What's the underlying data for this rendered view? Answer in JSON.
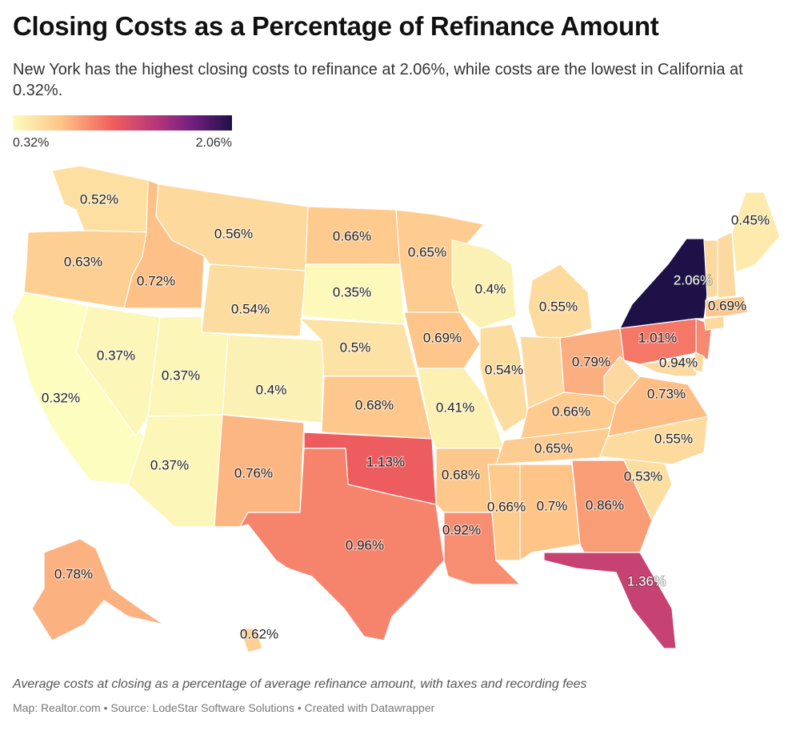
{
  "title": "Closing Costs as a Percentage of Refinance Amount",
  "subtitle": "New York has the highest closing costs to refinance at 2.06%, while costs are the lowest in California at 0.32%.",
  "legend": {
    "min_label": "0.32%",
    "max_label": "2.06%",
    "min": 0.32,
    "max": 2.06
  },
  "note": "Average costs at closing as a percentage of average refinance amount, with taxes and recording fees",
  "credit": "Map: Realtor.com • Source: LodeStar Software Solutions • Created with Datawrapper",
  "colors": [
    "#fcfdbf",
    "#fec488",
    "#f1605d",
    "#b73779",
    "#721f81",
    "#1d1147"
  ],
  "states": [
    {
      "id": "WA",
      "value": 0.52,
      "label": "0.52%"
    },
    {
      "id": "OR",
      "value": 0.63,
      "label": "0.63%"
    },
    {
      "id": "CA",
      "value": 0.32,
      "label": "0.32%"
    },
    {
      "id": "ID",
      "value": 0.72,
      "label": "0.72%"
    },
    {
      "id": "NV",
      "value": 0.37,
      "label": "0.37%"
    },
    {
      "id": "MT",
      "value": 0.56,
      "label": "0.56%"
    },
    {
      "id": "WY",
      "value": 0.54,
      "label": "0.54%"
    },
    {
      "id": "UT",
      "value": 0.37,
      "label": "0.37%"
    },
    {
      "id": "AZ",
      "value": 0.37,
      "label": "0.37%"
    },
    {
      "id": "CO",
      "value": 0.4,
      "label": "0.4%"
    },
    {
      "id": "NM",
      "value": 0.76,
      "label": "0.76%"
    },
    {
      "id": "ND",
      "value": 0.66,
      "label": "0.66%"
    },
    {
      "id": "SD",
      "value": 0.35,
      "label": "0.35%"
    },
    {
      "id": "NE",
      "value": 0.5,
      "label": "0.5%"
    },
    {
      "id": "KS",
      "value": 0.68,
      "label": "0.68%"
    },
    {
      "id": "OK",
      "value": 1.13,
      "label": "1.13%"
    },
    {
      "id": "TX",
      "value": 0.96,
      "label": "0.96%"
    },
    {
      "id": "MN",
      "value": 0.65,
      "label": "0.65%"
    },
    {
      "id": "IA",
      "value": 0.69,
      "label": "0.69%"
    },
    {
      "id": "MO",
      "value": 0.41,
      "label": "0.41%"
    },
    {
      "id": "AR",
      "value": 0.68,
      "label": "0.68%"
    },
    {
      "id": "LA",
      "value": 0.92,
      "label": "0.92%"
    },
    {
      "id": "WI",
      "value": 0.4,
      "label": "0.4%"
    },
    {
      "id": "IL",
      "value": 0.54,
      "label": "0.54%"
    },
    {
      "id": "MI",
      "value": 0.55,
      "label": "0.55%"
    },
    {
      "id": "IN",
      "value": null,
      "label": ""
    },
    {
      "id": "OH",
      "value": 0.79,
      "label": "0.79%"
    },
    {
      "id": "KY",
      "value": 0.66,
      "label": "0.66%"
    },
    {
      "id": "TN",
      "value": 0.65,
      "label": "0.65%"
    },
    {
      "id": "MS",
      "value": 0.66,
      "label": "0.66%"
    },
    {
      "id": "AL",
      "value": 0.7,
      "label": "0.7%"
    },
    {
      "id": "GA",
      "value": 0.86,
      "label": "0.86%"
    },
    {
      "id": "FL",
      "value": 1.36,
      "label": "1.36%"
    },
    {
      "id": "SC",
      "value": 0.53,
      "label": "0.53%"
    },
    {
      "id": "NC",
      "value": 0.55,
      "label": "0.55%"
    },
    {
      "id": "VA",
      "value": 0.73,
      "label": "0.73%"
    },
    {
      "id": "WV",
      "value": null,
      "label": ""
    },
    {
      "id": "PA",
      "value": 1.01,
      "label": "1.01%"
    },
    {
      "id": "NY",
      "value": 2.06,
      "label": "2.06%"
    },
    {
      "id": "NJ",
      "value": 0.94,
      "label": "0.94%"
    },
    {
      "id": "MD",
      "value": null,
      "label": ""
    },
    {
      "id": "DE",
      "value": null,
      "label": ""
    },
    {
      "id": "CT",
      "value": null,
      "label": ""
    },
    {
      "id": "MA",
      "value": 0.69,
      "label": "0.69%"
    },
    {
      "id": "VT",
      "value": null,
      "label": ""
    },
    {
      "id": "NH",
      "value": null,
      "label": ""
    },
    {
      "id": "ME",
      "value": 0.45,
      "label": "0.45%"
    },
    {
      "id": "AK",
      "value": 0.78,
      "label": "0.78%"
    },
    {
      "id": "HI",
      "value": 0.62,
      "label": "0.62%"
    }
  ]
}
